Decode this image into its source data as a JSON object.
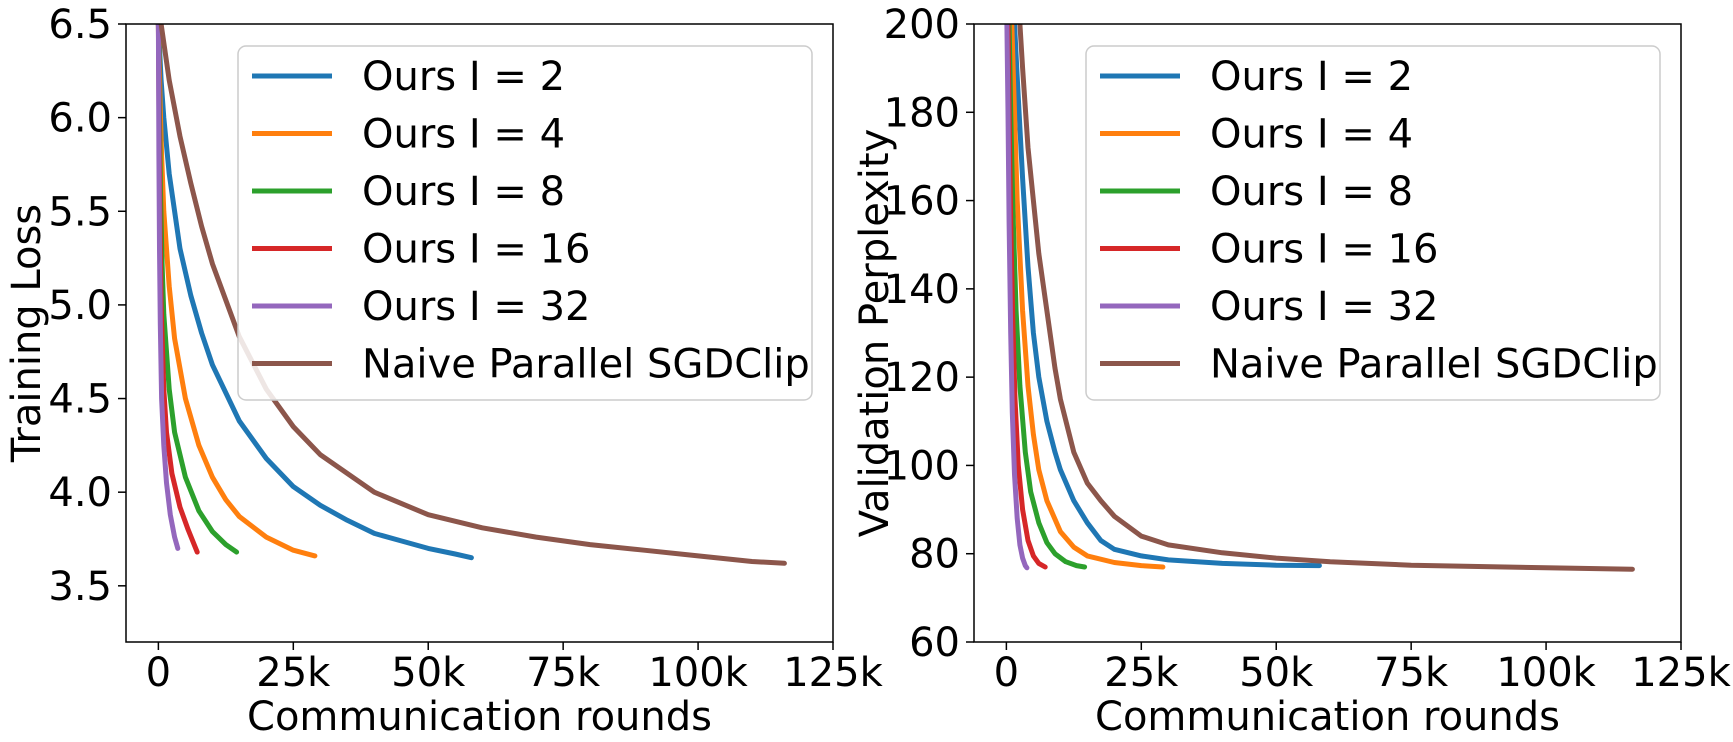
{
  "chart_data": [
    {
      "type": "line",
      "xlabel": "Communication rounds",
      "ylabel": "Training Loss",
      "xlim": [
        -6000,
        125000
      ],
      "ylim": [
        3.2,
        6.5
      ],
      "xticks": [
        0,
        25000,
        50000,
        75000,
        100000,
        125000
      ],
      "xtick_labels": [
        "0",
        "25k",
        "50k",
        "75k",
        "100k",
        "125k"
      ],
      "yticks": [
        3.5,
        4.0,
        4.5,
        5.0,
        5.5,
        6.0,
        6.5
      ],
      "ytick_labels": [
        "3.5",
        "4.0",
        "4.5",
        "5.0",
        "5.5",
        "6.0",
        "6.5"
      ],
      "legend": "top-right",
      "series": [
        {
          "name": "Ours I = 2",
          "color": "#1f77b4",
          "points": [
            [
              0,
              6.5
            ],
            [
              500,
              6.2
            ],
            [
              1000,
              6.0
            ],
            [
              2000,
              5.7
            ],
            [
              4000,
              5.3
            ],
            [
              6000,
              5.05
            ],
            [
              8000,
              4.85
            ],
            [
              10000,
              4.68
            ],
            [
              15000,
              4.38
            ],
            [
              20000,
              4.18
            ],
            [
              25000,
              4.03
            ],
            [
              30000,
              3.93
            ],
            [
              35000,
              3.85
            ],
            [
              40000,
              3.78
            ],
            [
              45000,
              3.74
            ],
            [
              50000,
              3.7
            ],
            [
              55000,
              3.67
            ],
            [
              58000,
              3.65
            ]
          ]
        },
        {
          "name": "Ours I = 4",
          "color": "#ff7f0e",
          "points": [
            [
              0,
              6.5
            ],
            [
              300,
              6.1
            ],
            [
              600,
              5.8
            ],
            [
              1000,
              5.5
            ],
            [
              2000,
              5.1
            ],
            [
              3000,
              4.82
            ],
            [
              5000,
              4.5
            ],
            [
              7500,
              4.25
            ],
            [
              10000,
              4.08
            ],
            [
              12500,
              3.96
            ],
            [
              15000,
              3.87
            ],
            [
              20000,
              3.76
            ],
            [
              25000,
              3.69
            ],
            [
              29000,
              3.66
            ]
          ]
        },
        {
          "name": "Ours I = 8",
          "color": "#2ca02c",
          "points": [
            [
              0,
              6.5
            ],
            [
              200,
              6.0
            ],
            [
              400,
              5.6
            ],
            [
              700,
              5.2
            ],
            [
              1000,
              4.95
            ],
            [
              2000,
              4.55
            ],
            [
              3000,
              4.32
            ],
            [
              5000,
              4.08
            ],
            [
              7500,
              3.9
            ],
            [
              10000,
              3.79
            ],
            [
              12500,
              3.72
            ],
            [
              14500,
              3.68
            ]
          ]
        },
        {
          "name": "Ours I = 16",
          "color": "#d62728",
          "points": [
            [
              0,
              6.5
            ],
            [
              150,
              5.9
            ],
            [
              300,
              5.4
            ],
            [
              500,
              5.0
            ],
            [
              1000,
              4.55
            ],
            [
              1500,
              4.32
            ],
            [
              2500,
              4.1
            ],
            [
              4000,
              3.92
            ],
            [
              5500,
              3.8
            ],
            [
              7200,
              3.68
            ]
          ]
        },
        {
          "name": "Ours I = 32",
          "color": "#9467bd",
          "points": [
            [
              0,
              6.5
            ],
            [
              100,
              5.8
            ],
            [
              200,
              5.3
            ],
            [
              350,
              4.9
            ],
            [
              600,
              4.5
            ],
            [
              1000,
              4.25
            ],
            [
              1500,
              4.05
            ],
            [
              2200,
              3.88
            ],
            [
              3000,
              3.76
            ],
            [
              3600,
              3.7
            ]
          ]
        },
        {
          "name": "Naive Parallel SGDClip",
          "color": "#8c564b",
          "points": [
            [
              0,
              6.6
            ],
            [
              1000,
              6.4
            ],
            [
              2000,
              6.2
            ],
            [
              4000,
              5.9
            ],
            [
              6000,
              5.65
            ],
            [
              8000,
              5.42
            ],
            [
              10000,
              5.22
            ],
            [
              15000,
              4.83
            ],
            [
              20000,
              4.55
            ],
            [
              25000,
              4.35
            ],
            [
              30000,
              4.2
            ],
            [
              40000,
              4.0
            ],
            [
              50000,
              3.88
            ],
            [
              60000,
              3.81
            ],
            [
              70000,
              3.76
            ],
            [
              80000,
              3.72
            ],
            [
              90000,
              3.69
            ],
            [
              100000,
              3.66
            ],
            [
              110000,
              3.63
            ],
            [
              116000,
              3.62
            ]
          ]
        }
      ]
    },
    {
      "type": "line",
      "xlabel": "Communication rounds",
      "ylabel": "Validation Perplexity",
      "xlim": [
        -6000,
        125000
      ],
      "ylim": [
        60,
        200
      ],
      "xticks": [
        0,
        25000,
        50000,
        75000,
        100000,
        125000
      ],
      "xtick_labels": [
        "0",
        "25k",
        "50k",
        "75k",
        "100k",
        "125k"
      ],
      "yticks": [
        60,
        80,
        100,
        120,
        140,
        160,
        180,
        200
      ],
      "ytick_labels": [
        "60",
        "80",
        "100",
        "120",
        "140",
        "160",
        "180",
        "200"
      ],
      "legend": "top-right",
      "series": [
        {
          "name": "Ours I = 2",
          "color": "#1f77b4",
          "points": [
            [
              1500,
              200
            ],
            [
              2000,
              188
            ],
            [
              3000,
              165
            ],
            [
              4000,
              145
            ],
            [
              5000,
              130
            ],
            [
              6000,
              120
            ],
            [
              7500,
              110
            ],
            [
              9000,
              103
            ],
            [
              10000,
              99
            ],
            [
              12500,
              92
            ],
            [
              15000,
              87
            ],
            [
              17500,
              83
            ],
            [
              20000,
              81
            ],
            [
              25000,
              79.5
            ],
            [
              30000,
              78.6
            ],
            [
              40000,
              77.8
            ],
            [
              50000,
              77.4
            ],
            [
              58000,
              77.3
            ]
          ]
        },
        {
          "name": "Ours I = 4",
          "color": "#ff7f0e",
          "points": [
            [
              1000,
              200
            ],
            [
              1500,
              180
            ],
            [
              2000,
              160
            ],
            [
              3000,
              135
            ],
            [
              4000,
              118
            ],
            [
              5000,
              107
            ],
            [
              6000,
              99
            ],
            [
              7500,
              92
            ],
            [
              10000,
              85
            ],
            [
              12500,
              81.5
            ],
            [
              15000,
              79.5
            ],
            [
              20000,
              78
            ],
            [
              25000,
              77.3
            ],
            [
              29000,
              77
            ]
          ]
        },
        {
          "name": "Ours I = 8",
          "color": "#2ca02c",
          "points": [
            [
              500,
              200
            ],
            [
              800,
              180
            ],
            [
              1200,
              158
            ],
            [
              1800,
              135
            ],
            [
              2500,
              118
            ],
            [
              3500,
              103
            ],
            [
              4500,
              94
            ],
            [
              6000,
              87
            ],
            [
              7500,
              82.5
            ],
            [
              9000,
              80
            ],
            [
              11000,
              78.2
            ],
            [
              13000,
              77.3
            ],
            [
              14500,
              77
            ]
          ]
        },
        {
          "name": "Ours I = 16",
          "color": "#d62728",
          "points": [
            [
              300,
              200
            ],
            [
              500,
              180
            ],
            [
              800,
              155
            ],
            [
              1200,
              132
            ],
            [
              1600,
              115
            ],
            [
              2200,
              100
            ],
            [
              3000,
              90
            ],
            [
              4000,
              83
            ],
            [
              5000,
              79.5
            ],
            [
              6000,
              77.8
            ],
            [
              7200,
              77
            ]
          ]
        },
        {
          "name": "Ours I = 32",
          "color": "#9467bd",
          "points": [
            [
              100,
              200
            ],
            [
              300,
              180
            ],
            [
              500,
              155
            ],
            [
              800,
              130
            ],
            [
              1100,
              112
            ],
            [
              1500,
              98
            ],
            [
              2000,
              88
            ],
            [
              2500,
              82
            ],
            [
              3000,
              79
            ],
            [
              3500,
              77.3
            ],
            [
              3800,
              76.8
            ]
          ]
        },
        {
          "name": "Naive Parallel SGDClip",
          "color": "#8c564b",
          "points": [
            [
              2500,
              200
            ],
            [
              3000,
              190
            ],
            [
              4000,
              172
            ],
            [
              5000,
              160
            ],
            [
              6000,
              148
            ],
            [
              7500,
              135
            ],
            [
              9000,
              122
            ],
            [
              10000,
              115
            ],
            [
              12500,
              103
            ],
            [
              15000,
              96
            ],
            [
              17500,
              92
            ],
            [
              20000,
              88.5
            ],
            [
              25000,
              84
            ],
            [
              30000,
              82
            ],
            [
              40000,
              80.2
            ],
            [
              50000,
              79
            ],
            [
              60000,
              78.2
            ],
            [
              75000,
              77.4
            ],
            [
              100000,
              76.8
            ],
            [
              116000,
              76.5
            ]
          ]
        }
      ]
    }
  ]
}
